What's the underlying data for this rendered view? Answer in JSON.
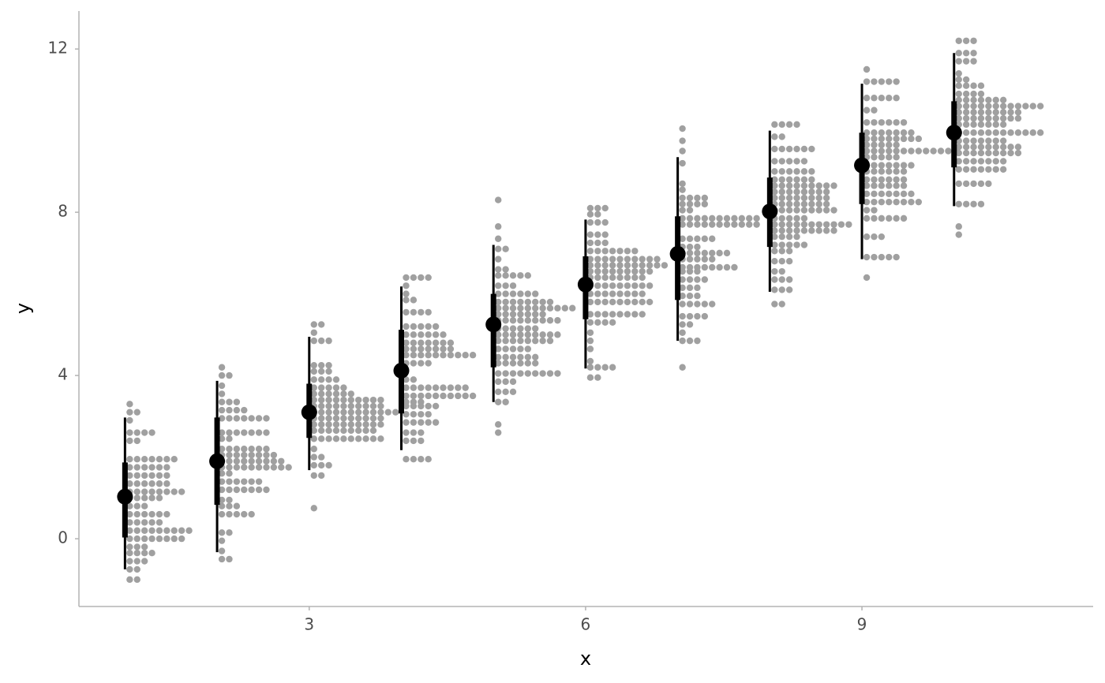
{
  "chart_data": {
    "type": "dots",
    "x_label": "x",
    "y_label": "y",
    "xlim": [
      0.5,
      11.51
    ],
    "ylim": [
      -1.66,
      12.93
    ],
    "xticks": [
      3,
      6,
      9
    ],
    "yticks": [
      0,
      4,
      8,
      12
    ],
    "dot_color": "#a0a0a0",
    "interval_color": "#000000",
    "groups": [
      {
        "x": 1,
        "median": 1.03,
        "q66": [
          0.03,
          1.87
        ],
        "q95": [
          -0.75,
          2.97
        ],
        "dot_y": [
          -1.0,
          -0.75,
          -0.55,
          -0.35,
          -0.2,
          0,
          0.2,
          0.4,
          0.6,
          0.8,
          1.0,
          1.15,
          1.35,
          1.55,
          1.75,
          1.95,
          2.4,
          2.6,
          2.9,
          3.1,
          3.3
        ],
        "dot_counts": [
          2,
          2,
          3,
          4,
          3,
          8,
          9,
          5,
          6,
          3,
          5,
          8,
          6,
          6,
          6,
          7,
          2,
          4,
          1,
          2,
          1
        ]
      },
      {
        "x": 2,
        "median": 1.9,
        "q66": [
          0.83,
          2.97
        ],
        "q95": [
          -0.33,
          3.87
        ],
        "dot_y": [
          -0.5,
          -0.3,
          -0.05,
          0.15,
          0.6,
          0.8,
          0.95,
          1.2,
          1.4,
          1.6,
          1.75,
          1.9,
          2.05,
          2.2,
          2.45,
          2.6,
          2.95,
          3.15,
          3.35,
          3.55,
          3.75,
          4.0,
          4.2
        ],
        "dot_counts": [
          2,
          1,
          1,
          2,
          5,
          3,
          2,
          7,
          6,
          2,
          10,
          9,
          8,
          7,
          2,
          7,
          7,
          4,
          3,
          1,
          1,
          2,
          1
        ]
      },
      {
        "x": 3,
        "median": 3.1,
        "q66": [
          2.47,
          3.8
        ],
        "q95": [
          1.68,
          4.95
        ],
        "dot_y": [
          0.75,
          1.55,
          1.8,
          2.0,
          2.2,
          2.45,
          2.65,
          2.8,
          2.95,
          3.1,
          3.25,
          3.4,
          3.55,
          3.7,
          3.9,
          4.1,
          4.25,
          4.85,
          5.05,
          5.25
        ],
        "dot_counts": [
          1,
          2,
          3,
          2,
          1,
          10,
          9,
          10,
          10,
          12,
          10,
          10,
          6,
          5,
          4,
          3,
          3,
          3,
          1,
          2
        ]
      },
      {
        "x": 4,
        "median": 4.12,
        "q66": [
          3.07,
          5.12
        ],
        "q95": [
          2.17,
          6.18
        ],
        "dot_y": [
          1.95,
          2.4,
          2.6,
          2.85,
          3.05,
          3.25,
          3.35,
          3.5,
          3.7,
          3.9,
          4.3,
          4.5,
          4.65,
          4.8,
          5.0,
          5.2,
          5.55,
          5.85,
          6.0,
          6.2,
          6.4
        ],
        "dot_counts": [
          4,
          3,
          3,
          5,
          4,
          5,
          3,
          10,
          9,
          2,
          4,
          10,
          7,
          7,
          6,
          5,
          4,
          2,
          1,
          1,
          4
        ]
      },
      {
        "x": 5,
        "median": 5.25,
        "q66": [
          4.2,
          6.0
        ],
        "q95": [
          3.35,
          7.2
        ],
        "dot_y": [
          2.6,
          2.8,
          3.35,
          3.6,
          3.85,
          4.05,
          4.3,
          4.45,
          4.65,
          4.85,
          5.0,
          5.15,
          5.35,
          5.5,
          5.65,
          5.8,
          6.0,
          6.2,
          6.45,
          6.6,
          6.85,
          7.1,
          7.35,
          7.65,
          8.3
        ],
        "dot_counts": [
          1,
          1,
          2,
          3,
          3,
          9,
          6,
          6,
          5,
          8,
          9,
          6,
          9,
          7,
          11,
          8,
          6,
          3,
          5,
          2,
          1,
          2,
          1,
          1,
          1
        ]
      },
      {
        "x": 6,
        "median": 6.23,
        "q66": [
          5.38,
          6.92
        ],
        "q95": [
          4.17,
          7.82
        ],
        "dot_y": [
          3.95,
          4.2,
          4.35,
          4.65,
          4.85,
          5.05,
          5.3,
          5.5,
          5.8,
          6.0,
          6.2,
          6.4,
          6.55,
          6.7,
          6.85,
          7.05,
          7.25,
          7.45,
          7.75,
          7.95,
          8.1
        ],
        "dot_counts": [
          2,
          4,
          1,
          1,
          1,
          1,
          4,
          8,
          9,
          8,
          9,
          8,
          9,
          11,
          10,
          7,
          3,
          3,
          3,
          2,
          3
        ]
      },
      {
        "x": 7,
        "median": 6.98,
        "q66": [
          5.85,
          7.9
        ],
        "q95": [
          4.85,
          9.35
        ],
        "dot_y": [
          4.2,
          4.85,
          5.05,
          5.25,
          5.45,
          5.75,
          5.95,
          6.15,
          6.35,
          6.55,
          6.65,
          6.85,
          7.0,
          7.15,
          7.35,
          7.7,
          7.85,
          8.05,
          8.2,
          8.35,
          8.55,
          8.7,
          9.2,
          9.5,
          9.75,
          10.05
        ],
        "dot_counts": [
          1,
          3,
          1,
          2,
          4,
          5,
          3,
          3,
          4,
          3,
          8,
          5,
          7,
          3,
          5,
          11,
          11,
          2,
          4,
          4,
          1,
          1,
          1,
          1,
          1,
          1
        ]
      },
      {
        "x": 8,
        "median": 8.02,
        "q66": [
          7.15,
          8.85
        ],
        "q95": [
          6.05,
          10.0
        ],
        "dot_y": [
          5.75,
          6.1,
          6.35,
          6.55,
          6.8,
          7.05,
          7.2,
          7.4,
          7.55,
          7.7,
          7.85,
          8.05,
          8.2,
          8.35,
          8.5,
          8.65,
          8.8,
          9.0,
          9.25,
          9.55,
          9.85,
          10.15
        ],
        "dot_counts": [
          2,
          3,
          3,
          2,
          3,
          3,
          5,
          4,
          9,
          11,
          5,
          9,
          8,
          8,
          8,
          9,
          6,
          6,
          5,
          6,
          2,
          4
        ]
      },
      {
        "x": 9,
        "median": 9.15,
        "q66": [
          8.2,
          9.95
        ],
        "q95": [
          6.85,
          11.15
        ],
        "dot_y": [
          6.4,
          6.9,
          7.4,
          7.85,
          8.05,
          8.25,
          8.45,
          8.65,
          8.8,
          9.0,
          9.15,
          9.35,
          9.5,
          9.65,
          9.8,
          9.95,
          10.2,
          10.5,
          10.8,
          11.2,
          11.5
        ],
        "dot_counts": [
          1,
          5,
          3,
          6,
          2,
          8,
          7,
          6,
          6,
          6,
          7,
          5,
          13,
          5,
          8,
          7,
          6,
          2,
          5,
          5,
          1
        ]
      },
      {
        "x": 10,
        "median": 9.95,
        "q66": [
          9.1,
          10.72
        ],
        "q95": [
          8.15,
          11.9
        ],
        "dot_y": [
          7.45,
          7.65,
          8.2,
          8.7,
          9.05,
          9.25,
          9.45,
          9.6,
          9.75,
          9.95,
          10.15,
          10.3,
          10.45,
          10.6,
          10.75,
          10.9,
          11.1,
          11.25,
          11.4,
          11.7,
          11.9,
          12.2
        ],
        "dot_counts": [
          1,
          1,
          4,
          5,
          7,
          7,
          9,
          9,
          7,
          12,
          7,
          9,
          9,
          12,
          7,
          4,
          4,
          2,
          1,
          3,
          3,
          3
        ]
      }
    ]
  }
}
